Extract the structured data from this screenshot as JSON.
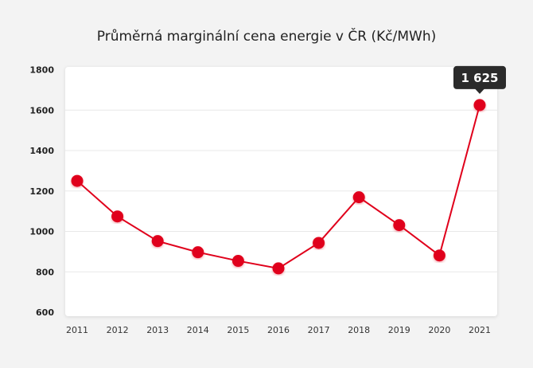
{
  "chart_data": {
    "type": "line",
    "title": "Průměrná marginální cena energie v ČR (Kč/MWh)",
    "categories": [
      "2011",
      "2012",
      "2013",
      "2014",
      "2015",
      "2016",
      "2017",
      "2018",
      "2019",
      "2020",
      "2021"
    ],
    "values": [
      1250,
      1074,
      952,
      897,
      854,
      817,
      943,
      1169,
      1031,
      881,
      1625
    ],
    "ylim": [
      600,
      1800
    ],
    "yticks": [
      600,
      800,
      1000,
      1200,
      1400,
      1600,
      1800
    ],
    "grid": true,
    "tooltip": {
      "category": "2021",
      "label": "1 625"
    },
    "colors": {
      "line": "#e0001b",
      "tooltip_bg": "#2b2b2b",
      "plot_bg": "#ffffff",
      "page_bg": "#f3f3f3"
    }
  }
}
